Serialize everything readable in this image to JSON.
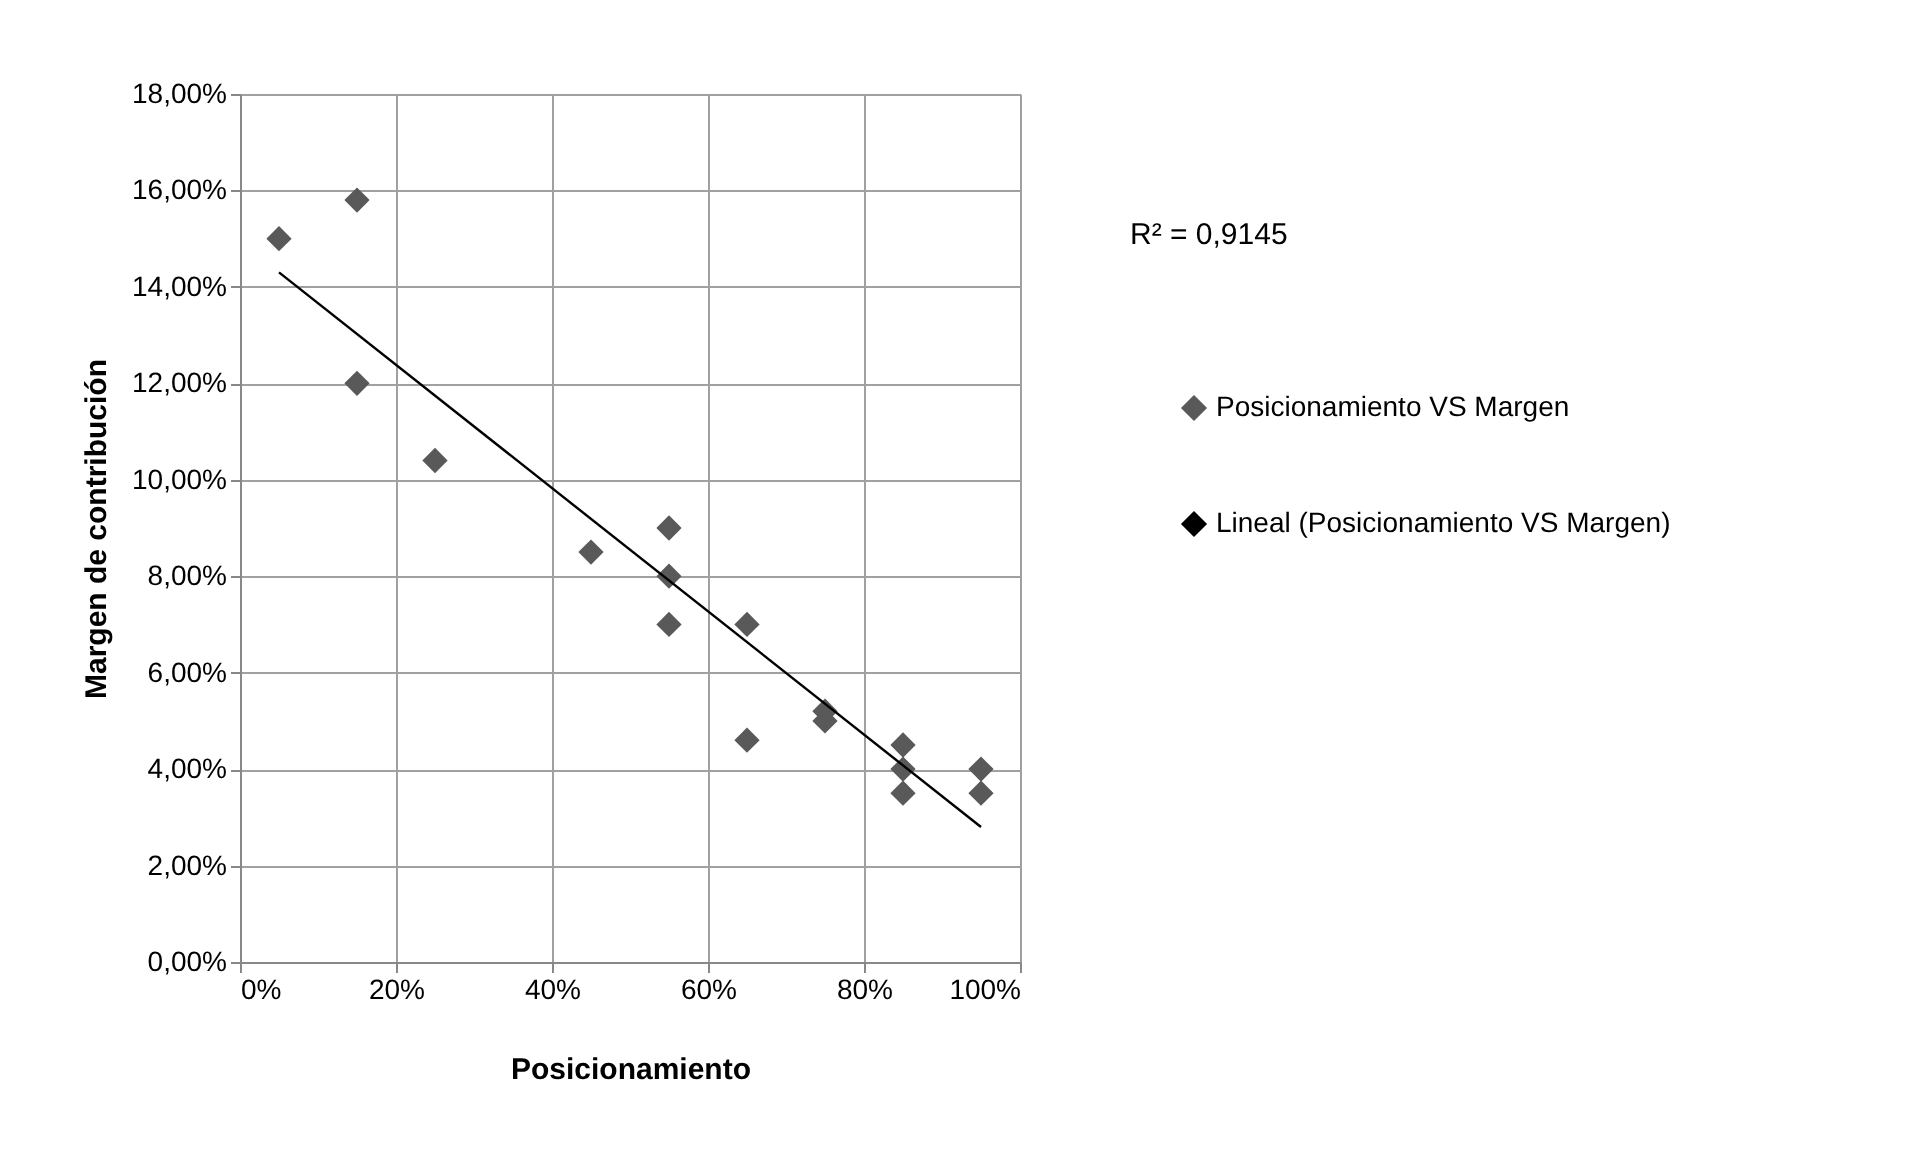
{
  "chart_data": {
    "type": "scatter",
    "xlabel": "Posicionamiento",
    "ylabel": "Margen de contribución",
    "xlim": [
      0,
      100
    ],
    "ylim": [
      0,
      18
    ],
    "xticks": [
      {
        "value": 0,
        "label": "0%"
      },
      {
        "value": 20,
        "label": "20%"
      },
      {
        "value": 40,
        "label": "40%"
      },
      {
        "value": 60,
        "label": "60%"
      },
      {
        "value": 80,
        "label": "80%"
      },
      {
        "value": 100,
        "label": "100%"
      }
    ],
    "yticks": [
      {
        "value": 0,
        "label": "0,00%"
      },
      {
        "value": 2,
        "label": "2,00%"
      },
      {
        "value": 4,
        "label": "4,00%"
      },
      {
        "value": 6,
        "label": "6,00%"
      },
      {
        "value": 8,
        "label": "8,00%"
      },
      {
        "value": 10,
        "label": "10,00%"
      },
      {
        "value": 12,
        "label": "12,00%"
      },
      {
        "value": 14,
        "label": "14,00%"
      },
      {
        "value": 16,
        "label": "16,00%"
      },
      {
        "value": 18,
        "label": "18,00%"
      }
    ],
    "grid": true,
    "legend": "right",
    "annotations": [
      "R² = 0,9145"
    ],
    "series": [
      {
        "name": "Posicionamiento VS Margen",
        "marker": "diamond",
        "color": "#595959",
        "x": [
          5,
          15,
          15,
          25,
          45,
          55,
          55,
          55,
          65,
          65,
          75,
          75,
          85,
          85,
          85,
          95,
          95
        ],
        "values": [
          15,
          15.8,
          12,
          10.4,
          8.5,
          9,
          8,
          7,
          7,
          4.6,
          5.2,
          5.0,
          4.5,
          4.0,
          3.5,
          4.0,
          3.5
        ]
      },
      {
        "name": "Lineal (Posicionamiento VS Margen)",
        "type": "line",
        "color": "#000000",
        "line_style": "solid",
        "marker": "none",
        "x": [
          5,
          95
        ],
        "values": [
          14.3,
          2.8
        ]
      }
    ]
  }
}
